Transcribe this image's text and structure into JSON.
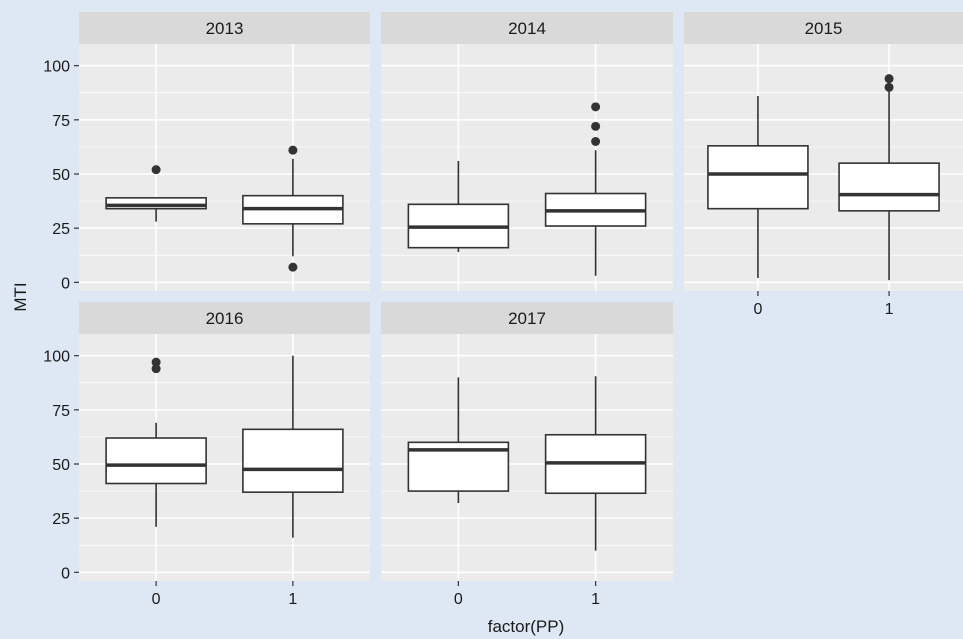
{
  "chart_data": {
    "type": "boxplot",
    "xlabel": "factor(PP)",
    "ylabel": "MTI",
    "ylim": [
      -4,
      110
    ],
    "y_ticks": [
      0,
      25,
      50,
      75,
      100
    ],
    "categories": [
      "0",
      "1"
    ],
    "grid": true,
    "colors": {
      "background": "#dde8f4",
      "panel": "#ebebeb",
      "strip": "#d9d9d9",
      "box_fill": "#ffffff",
      "box_line": "#333333",
      "outlier": "#333333"
    },
    "panels": [
      {
        "title": "2013",
        "boxes": [
          {
            "category": "0",
            "min": 28,
            "q1": 34,
            "median": 35.5,
            "q3": 39,
            "max": 39,
            "outliers": [
              52
            ]
          },
          {
            "category": "1",
            "min": 12,
            "q1": 27,
            "median": 34,
            "q3": 40,
            "max": 57,
            "outliers": [
              61,
              7
            ]
          }
        ]
      },
      {
        "title": "2014",
        "boxes": [
          {
            "category": "0",
            "min": 14,
            "q1": 16,
            "median": 25.5,
            "q3": 36,
            "max": 56,
            "outliers": []
          },
          {
            "category": "1",
            "min": 3,
            "q1": 26,
            "median": 33,
            "q3": 41,
            "max": 61,
            "outliers": [
              65,
              72,
              81
            ]
          }
        ]
      },
      {
        "title": "2015",
        "boxes": [
          {
            "category": "0",
            "min": 2,
            "q1": 34,
            "median": 50,
            "q3": 63,
            "max": 86,
            "outliers": []
          },
          {
            "category": "1",
            "min": 1,
            "q1": 33,
            "median": 40.5,
            "q3": 55,
            "max": 88,
            "outliers": [
              90,
              94
            ]
          }
        ]
      },
      {
        "title": "2016",
        "boxes": [
          {
            "category": "0",
            "min": 21,
            "q1": 41,
            "median": 49.5,
            "q3": 62,
            "max": 69,
            "outliers": [
              94,
              97
            ]
          },
          {
            "category": "1",
            "min": 16,
            "q1": 37,
            "median": 47.5,
            "q3": 66,
            "max": 100,
            "outliers": []
          }
        ]
      },
      {
        "title": "2017",
        "boxes": [
          {
            "category": "0",
            "min": 32,
            "q1": 37.5,
            "median": 56.5,
            "q3": 60,
            "max": 90,
            "outliers": []
          },
          {
            "category": "1",
            "min": 10,
            "q1": 36.5,
            "median": 50.5,
            "q3": 63.5,
            "max": 90.5,
            "outliers": []
          }
        ]
      }
    ]
  }
}
